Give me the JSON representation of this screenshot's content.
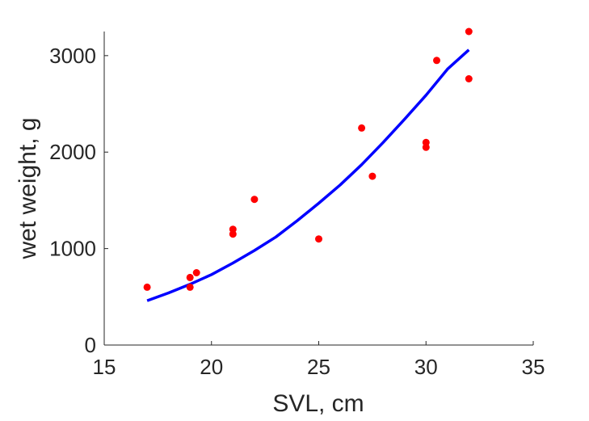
{
  "chart_data": {
    "type": "scatter",
    "title": "",
    "xlabel": "SVL, cm",
    "ylabel": "wet weight, g",
    "xlim": [
      15,
      35
    ],
    "ylim": [
      0,
      3250
    ],
    "xticks": [
      15,
      20,
      25,
      30,
      35
    ],
    "yticks": [
      0,
      1000,
      2000,
      3000
    ],
    "grid": false,
    "legend": "none",
    "series": [
      {
        "kind": "points",
        "color": "#ff0000",
        "points": [
          [
            17,
            600
          ],
          [
            19,
            700
          ],
          [
            19,
            600
          ],
          [
            19.3,
            750
          ],
          [
            21,
            1200
          ],
          [
            21,
            1150
          ],
          [
            22,
            1510
          ],
          [
            25,
            1100
          ],
          [
            27,
            2250
          ],
          [
            27.5,
            1750
          ],
          [
            30,
            2100
          ],
          [
            30,
            2050
          ],
          [
            30.5,
            2950
          ],
          [
            32,
            3250
          ],
          [
            32,
            2760
          ]
        ]
      },
      {
        "kind": "fit-curve",
        "color": "#0000ff",
        "x": [
          17,
          18,
          19,
          20,
          21,
          22,
          23,
          24,
          25,
          26,
          27,
          28,
          29,
          30,
          31,
          32
        ],
        "y": [
          460,
          540,
          630,
          730,
          850,
          980,
          1120,
          1290,
          1470,
          1660,
          1870,
          2100,
          2340,
          2590,
          2860,
          3060
        ]
      }
    ]
  }
}
